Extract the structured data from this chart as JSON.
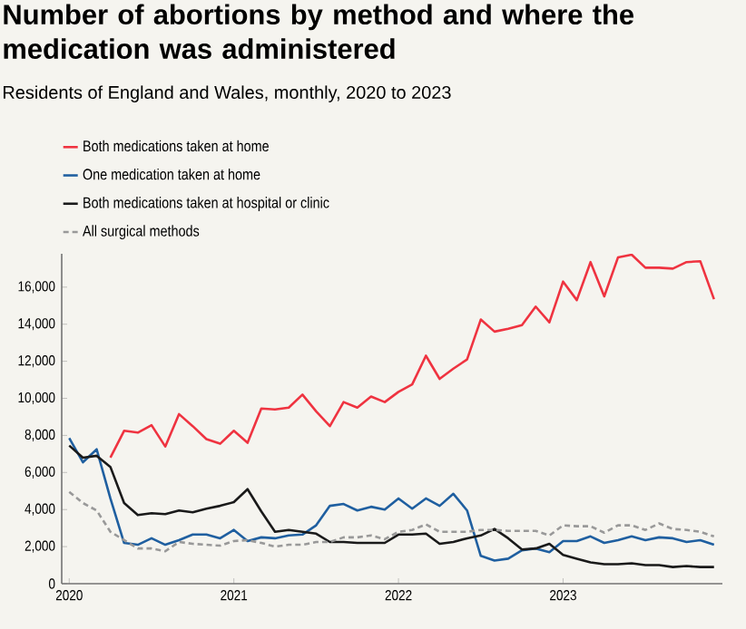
{
  "chart_data": {
    "type": "line",
    "title": "Number of abortions by method and where the medication was administered",
    "subtitle": "Residents of England and Wales, monthly, 2020 to 2023",
    "x": [
      "2020-01",
      "2020-02",
      "2020-03",
      "2020-04",
      "2020-05",
      "2020-06",
      "2020-07",
      "2020-08",
      "2020-09",
      "2020-10",
      "2020-11",
      "2020-12",
      "2021-01",
      "2021-02",
      "2021-03",
      "2021-04",
      "2021-05",
      "2021-06",
      "2021-07",
      "2021-08",
      "2021-09",
      "2021-10",
      "2021-11",
      "2021-12",
      "2022-01",
      "2022-02",
      "2022-03",
      "2022-04",
      "2022-05",
      "2022-06",
      "2022-07",
      "2022-08",
      "2022-09",
      "2022-10",
      "2022-11",
      "2022-12",
      "2023-01",
      "2023-02",
      "2023-03",
      "2023-04",
      "2023-05",
      "2023-06",
      "2023-07",
      "2023-08",
      "2023-09",
      "2023-10",
      "2023-11",
      "2023-12"
    ],
    "series": [
      {
        "name": "Both medications taken at home",
        "color": "#ef3340",
        "values": [
          null,
          null,
          null,
          6800,
          8250,
          8150,
          8550,
          7400,
          9150,
          8500,
          7800,
          7550,
          8250,
          7600,
          9450,
          9400,
          9500,
          10200,
          9300,
          8500,
          9800,
          9500,
          10100,
          9800,
          10350,
          10750,
          12300,
          11050,
          11600,
          12100,
          14250,
          13600,
          13750,
          13950,
          14950,
          14100,
          16300,
          15300,
          17350,
          15500,
          17600,
          17750,
          17050,
          17050,
          17000,
          17350,
          17400,
          15350
        ]
      },
      {
        "name": "One medication taken at home",
        "color": "#1f5fa0",
        "values": [
          7850,
          6550,
          7250,
          4600,
          2200,
          2100,
          2450,
          2100,
          2350,
          2650,
          2650,
          2450,
          2900,
          2300,
          2500,
          2450,
          2600,
          2650,
          3150,
          4200,
          4300,
          3950,
          4150,
          4000,
          4600,
          4050,
          4600,
          4200,
          4850,
          3950,
          1500,
          1250,
          1350,
          1800,
          1900,
          1700,
          2300,
          2300,
          2550,
          2200,
          2350,
          2550,
          2350,
          2500,
          2450,
          2250,
          2350,
          2100
        ]
      },
      {
        "name": "Both medications taken at hospital or clinic",
        "color": "#1a1a1a",
        "values": [
          7450,
          6800,
          6900,
          6300,
          4350,
          3700,
          3800,
          3750,
          3950,
          3850,
          4050,
          4200,
          4400,
          5100,
          3900,
          2800,
          2900,
          2800,
          2700,
          2250,
          2250,
          2200,
          2200,
          2200,
          2650,
          2650,
          2700,
          2150,
          2250,
          2450,
          2600,
          2950,
          2450,
          1850,
          1900,
          2150,
          1550,
          1350,
          1150,
          1050,
          1050,
          1100,
          1000,
          1000,
          900,
          950,
          900,
          900
        ]
      },
      {
        "name": "All surgical methods",
        "color": "#999999",
        "line_style": "dashed",
        "values": [
          4950,
          4350,
          3950,
          2800,
          2350,
          1900,
          1900,
          1750,
          2250,
          2150,
          2100,
          2050,
          2300,
          2350,
          2200,
          2000,
          2100,
          2100,
          2250,
          2250,
          2500,
          2500,
          2600,
          2400,
          2800,
          2900,
          3200,
          2800,
          2800,
          2800,
          2900,
          2900,
          2850,
          2850,
          2850,
          2600,
          3150,
          3100,
          3100,
          2750,
          3150,
          3150,
          2900,
          3250,
          2950,
          2900,
          2800,
          2550
        ]
      }
    ],
    "xlim": [
      "2019-12-15",
      "2023-12-20"
    ],
    "xticks": [
      {
        "value": "2020",
        "label": "2020"
      },
      {
        "value": "2021",
        "label": "2021"
      },
      {
        "value": "2022",
        "label": "2022"
      },
      {
        "value": "2023",
        "label": "2023"
      }
    ],
    "ylim": [
      0,
      17800
    ],
    "yticks": [
      {
        "value": 0,
        "label": "0"
      },
      {
        "value": 2000,
        "label": "2,000"
      },
      {
        "value": 4000,
        "label": "4,000"
      },
      {
        "value": 6000,
        "label": "6,000"
      },
      {
        "value": 8000,
        "label": "8,000"
      },
      {
        "value": 10000,
        "label": "10,000"
      },
      {
        "value": 12000,
        "label": "12,000"
      },
      {
        "value": 14000,
        "label": "14,000"
      },
      {
        "value": 16000,
        "label": "16,000"
      }
    ],
    "legend": "top left",
    "grid": false
  }
}
